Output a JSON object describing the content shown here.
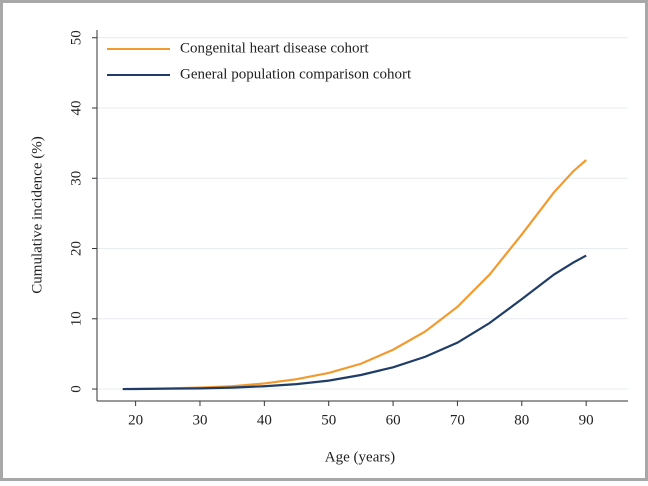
{
  "chart_data": {
    "type": "line",
    "x": [
      18,
      20,
      25,
      30,
      35,
      40,
      45,
      50,
      55,
      60,
      65,
      70,
      75,
      80,
      85,
      88,
      90
    ],
    "series": [
      {
        "name": "Congenital heart disease cohort",
        "color": "#f39a2e",
        "values": [
          0,
          0.05,
          0.1,
          0.2,
          0.4,
          0.8,
          1.4,
          2.3,
          3.6,
          5.6,
          8.2,
          11.7,
          16.3,
          22,
          28,
          31,
          32.6
        ]
      },
      {
        "name": "General population comparison cohort",
        "color": "#1f3d66",
        "values": [
          0,
          0,
          0.05,
          0.1,
          0.2,
          0.4,
          0.7,
          1.2,
          2,
          3.1,
          4.6,
          6.6,
          9.4,
          12.8,
          16.3,
          18,
          19
        ]
      }
    ],
    "xlabel": "Age (years)",
    "ylabel": "Cumulative incidence (%)",
    "xlim": [
      14,
      96.5
    ],
    "ylim": [
      -1.7,
      51.1
    ],
    "xticks": [
      20,
      30,
      40,
      50,
      60,
      70,
      80,
      90
    ],
    "yticks": [
      0,
      10,
      20,
      30,
      40,
      50
    ],
    "grid": true
  }
}
